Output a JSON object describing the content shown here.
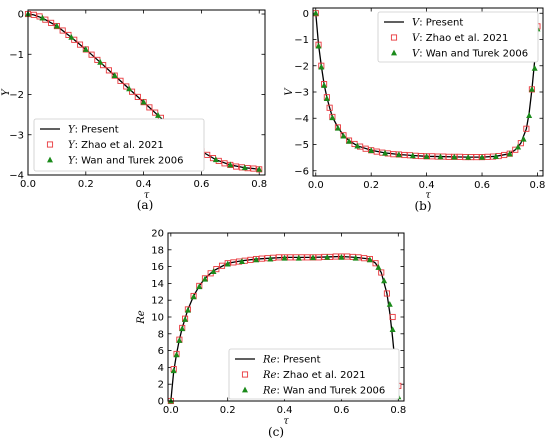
{
  "chart_data": [
    {
      "type": "line",
      "panel_label": "(a)",
      "xlabel": "τ",
      "ylabel": "Y",
      "xlim": [
        0,
        0.82
      ],
      "ylim": [
        -4,
        0.1
      ],
      "xticks": [
        0.0,
        0.2,
        0.4,
        0.6,
        0.8
      ],
      "xtick_labels": [
        "0.0",
        "0.2",
        "0.4",
        "0.6",
        "0.8"
      ],
      "yticks": [
        -4,
        -3,
        -2,
        -1,
        0
      ],
      "ytick_labels": [
        "−4",
        "−3",
        "−2",
        "−1",
        "0"
      ],
      "legend_position": "lower-left",
      "series": [
        {
          "name": "Y: Present",
          "symbol": "Y",
          "legend_suffix": ": Present",
          "style": "line",
          "color": "#000000",
          "x": [
            0.0,
            0.02,
            0.05,
            0.1,
            0.15,
            0.2,
            0.25,
            0.3,
            0.35,
            0.4,
            0.45,
            0.5,
            0.55,
            0.6,
            0.65,
            0.7,
            0.75,
            0.78,
            0.8
          ],
          "y": [
            0.0,
            -0.02,
            -0.1,
            -0.3,
            -0.58,
            -0.88,
            -1.2,
            -1.53,
            -1.86,
            -2.19,
            -2.52,
            -2.84,
            -3.14,
            -3.41,
            -3.62,
            -3.75,
            -3.82,
            -3.84,
            -3.86
          ]
        },
        {
          "name": "Y: Zhao et al. 2021",
          "symbol": "Y",
          "legend_suffix": ": Zhao et al. 2021",
          "style": "open-square",
          "color": "#e8383d",
          "x": [
            0.0,
            0.02,
            0.04,
            0.06,
            0.08,
            0.1,
            0.12,
            0.14,
            0.16,
            0.18,
            0.2,
            0.22,
            0.24,
            0.26,
            0.28,
            0.3,
            0.32,
            0.34,
            0.36,
            0.38,
            0.4,
            0.42,
            0.44,
            0.46,
            0.48,
            0.5,
            0.52,
            0.54,
            0.56,
            0.58,
            0.6,
            0.62,
            0.64,
            0.66,
            0.68,
            0.7,
            0.72,
            0.74,
            0.76,
            0.78,
            0.8
          ],
          "y": [
            0.0,
            -0.02,
            -0.06,
            -0.14,
            -0.22,
            -0.3,
            -0.41,
            -0.52,
            -0.64,
            -0.76,
            -0.88,
            -1.01,
            -1.14,
            -1.27,
            -1.4,
            -1.53,
            -1.66,
            -1.8,
            -1.93,
            -2.06,
            -2.19,
            -2.32,
            -2.45,
            -2.58,
            -2.71,
            -2.84,
            -2.96,
            -3.08,
            -3.2,
            -3.31,
            -3.41,
            -3.5,
            -3.58,
            -3.65,
            -3.71,
            -3.75,
            -3.79,
            -3.81,
            -3.83,
            -3.84,
            -3.86
          ]
        },
        {
          "name": "Y: Wan and Turek 2006",
          "symbol": "Y",
          "legend_suffix": ": Wan and Turek 2006",
          "style": "filled-triangle",
          "color": "#1a8a1a",
          "x": [
            0.0,
            0.05,
            0.1,
            0.15,
            0.2,
            0.25,
            0.3,
            0.35,
            0.4,
            0.45,
            0.5,
            0.55,
            0.6,
            0.65,
            0.7,
            0.75,
            0.8
          ],
          "y": [
            0.0,
            -0.1,
            -0.3,
            -0.58,
            -0.88,
            -1.2,
            -1.53,
            -1.86,
            -2.19,
            -2.52,
            -2.84,
            -3.14,
            -3.41,
            -3.62,
            -3.75,
            -3.82,
            -3.86
          ]
        }
      ]
    },
    {
      "type": "line",
      "panel_label": "(b)",
      "xlabel": "τ",
      "ylabel": "V",
      "xlim": [
        -0.01,
        0.82
      ],
      "ylim": [
        -6.2,
        0.2
      ],
      "xticks": [
        0.0,
        0.2,
        0.4,
        0.6,
        0.8
      ],
      "xtick_labels": [
        "0.0",
        "0.2",
        "0.4",
        "0.6",
        "0.8"
      ],
      "yticks": [
        -6,
        -5,
        -4,
        -3,
        -2,
        -1,
        0
      ],
      "ytick_labels": [
        "−6",
        "−5",
        "−4",
        "−3",
        "−2",
        "−1",
        "0"
      ],
      "legend_position": "top-right",
      "series": [
        {
          "name": "V: Present",
          "symbol": "V",
          "legend_suffix": ": Present",
          "style": "line",
          "color": "#000000",
          "x": [
            0.0,
            0.005,
            0.01,
            0.02,
            0.03,
            0.04,
            0.05,
            0.06,
            0.08,
            0.1,
            0.12,
            0.15,
            0.2,
            0.25,
            0.3,
            0.35,
            0.4,
            0.45,
            0.5,
            0.55,
            0.6,
            0.65,
            0.7,
            0.72,
            0.74,
            0.76,
            0.77,
            0.78,
            0.79,
            0.8
          ],
          "y": [
            0.0,
            -0.6,
            -1.2,
            -2.0,
            -2.7,
            -3.2,
            -3.6,
            -3.95,
            -4.35,
            -4.65,
            -4.85,
            -5.05,
            -5.22,
            -5.32,
            -5.38,
            -5.42,
            -5.45,
            -5.46,
            -5.47,
            -5.48,
            -5.48,
            -5.45,
            -5.35,
            -5.2,
            -4.95,
            -4.4,
            -3.8,
            -2.9,
            -1.8,
            -0.5
          ]
        },
        {
          "name": "V: Zhao et al. 2021",
          "symbol": "V",
          "legend_suffix": ": Zhao et al. 2021",
          "style": "open-square",
          "color": "#e8383d",
          "x": [
            0.0,
            0.01,
            0.02,
            0.03,
            0.04,
            0.05,
            0.06,
            0.08,
            0.1,
            0.12,
            0.14,
            0.16,
            0.18,
            0.2,
            0.22,
            0.24,
            0.26,
            0.28,
            0.3,
            0.32,
            0.34,
            0.36,
            0.38,
            0.4,
            0.42,
            0.44,
            0.46,
            0.48,
            0.5,
            0.52,
            0.54,
            0.56,
            0.58,
            0.6,
            0.62,
            0.64,
            0.66,
            0.68,
            0.7,
            0.72,
            0.74,
            0.76,
            0.78,
            0.8
          ],
          "y": [
            0.0,
            -1.2,
            -2.0,
            -2.7,
            -3.2,
            -3.6,
            -3.95,
            -4.35,
            -4.65,
            -4.85,
            -4.98,
            -5.08,
            -5.16,
            -5.22,
            -5.27,
            -5.31,
            -5.34,
            -5.37,
            -5.38,
            -5.4,
            -5.41,
            -5.43,
            -5.44,
            -5.45,
            -5.45,
            -5.46,
            -5.46,
            -5.47,
            -5.47,
            -5.47,
            -5.48,
            -5.48,
            -5.48,
            -5.48,
            -5.47,
            -5.46,
            -5.44,
            -5.4,
            -5.35,
            -5.2,
            -4.95,
            -4.4,
            -2.9,
            -0.5
          ]
        },
        {
          "name": "V: Wan and Turek 2006",
          "symbol": "V",
          "legend_suffix": ": Wan and Turek 2006",
          "style": "filled-triangle",
          "color": "#1a8a1a",
          "x": [
            0.0,
            0.01,
            0.02,
            0.03,
            0.04,
            0.06,
            0.08,
            0.1,
            0.12,
            0.15,
            0.2,
            0.25,
            0.3,
            0.35,
            0.4,
            0.45,
            0.5,
            0.55,
            0.6,
            0.65,
            0.7,
            0.73,
            0.75,
            0.77,
            0.78,
            0.79,
            0.8
          ],
          "y": [
            0.0,
            -1.25,
            -2.05,
            -2.75,
            -3.25,
            -3.98,
            -4.38,
            -4.68,
            -4.88,
            -5.06,
            -5.23,
            -5.33,
            -5.39,
            -5.43,
            -5.46,
            -5.47,
            -5.48,
            -5.49,
            -5.49,
            -5.46,
            -5.36,
            -5.1,
            -4.8,
            -3.9,
            -2.9,
            -2.1,
            -0.6
          ]
        }
      ]
    },
    {
      "type": "line",
      "panel_label": "(c)",
      "xlabel": "τ",
      "ylabel": "Re",
      "xlim": [
        -0.01,
        0.82
      ],
      "ylim": [
        0,
        20
      ],
      "xticks": [
        0.0,
        0.2,
        0.4,
        0.6,
        0.8
      ],
      "xtick_labels": [
        "0.0",
        "0.2",
        "0.4",
        "0.6",
        "0.8"
      ],
      "yticks": [
        0,
        2,
        4,
        6,
        8,
        10,
        12,
        14,
        16,
        18,
        20
      ],
      "ytick_labels": [
        "0",
        "2",
        "4",
        "6",
        "8",
        "10",
        "12",
        "14",
        "16",
        "18",
        "20"
      ],
      "legend_position": "lower-center",
      "series": [
        {
          "name": "Re: Present",
          "symbol": "Re",
          "legend_suffix": ": Present",
          "style": "line",
          "color": "#000000",
          "x": [
            0.0,
            0.005,
            0.01,
            0.02,
            0.03,
            0.04,
            0.05,
            0.06,
            0.08,
            0.1,
            0.12,
            0.15,
            0.2,
            0.25,
            0.3,
            0.35,
            0.4,
            0.45,
            0.5,
            0.55,
            0.6,
            0.65,
            0.7,
            0.72,
            0.74,
            0.76,
            0.77,
            0.78,
            0.79,
            0.8
          ],
          "y": [
            0.0,
            1.8,
            3.5,
            5.6,
            7.3,
            8.7,
            9.8,
            10.9,
            12.5,
            13.7,
            14.6,
            15.5,
            16.4,
            16.7,
            16.9,
            17.0,
            17.1,
            17.1,
            17.1,
            17.15,
            17.2,
            17.1,
            16.9,
            16.4,
            15.3,
            12.8,
            10.5,
            7.5,
            4.0,
            0.5
          ]
        },
        {
          "name": "Re: Zhao et al. 2021",
          "symbol": "Re",
          "legend_suffix": ": Zhao et al. 2021",
          "style": "open-square",
          "color": "#e8383d",
          "x": [
            0.0,
            0.01,
            0.02,
            0.03,
            0.04,
            0.05,
            0.06,
            0.08,
            0.1,
            0.12,
            0.14,
            0.16,
            0.18,
            0.2,
            0.22,
            0.24,
            0.26,
            0.28,
            0.3,
            0.32,
            0.34,
            0.36,
            0.38,
            0.4,
            0.42,
            0.44,
            0.46,
            0.48,
            0.5,
            0.52,
            0.54,
            0.56,
            0.58,
            0.6,
            0.62,
            0.64,
            0.66,
            0.68,
            0.7,
            0.72,
            0.74,
            0.76,
            0.78,
            0.8
          ],
          "y": [
            0.0,
            3.8,
            5.6,
            7.3,
            8.7,
            9.8,
            10.9,
            12.5,
            13.7,
            14.6,
            15.2,
            15.7,
            16.1,
            16.4,
            16.5,
            16.6,
            16.7,
            16.8,
            16.9,
            16.95,
            17.0,
            17.05,
            17.1,
            17.1,
            17.1,
            17.1,
            17.1,
            17.1,
            17.1,
            17.1,
            17.15,
            17.15,
            17.2,
            17.2,
            17.2,
            17.15,
            17.1,
            17.0,
            16.9,
            16.4,
            15.3,
            12.8,
            10.0,
            1.8
          ]
        },
        {
          "name": "Re: Wan and Turek 2006",
          "symbol": "Re",
          "legend_suffix": ": Wan and Turek 2006",
          "style": "filled-triangle",
          "color": "#1a8a1a",
          "x": [
            0.0,
            0.01,
            0.02,
            0.03,
            0.04,
            0.05,
            0.06,
            0.08,
            0.1,
            0.12,
            0.15,
            0.2,
            0.25,
            0.3,
            0.35,
            0.4,
            0.45,
            0.5,
            0.55,
            0.6,
            0.65,
            0.7,
            0.73,
            0.75,
            0.77,
            0.78,
            0.79,
            0.8
          ],
          "y": [
            0.0,
            3.6,
            5.5,
            7.2,
            8.6,
            9.7,
            10.8,
            12.4,
            13.6,
            14.5,
            15.4,
            16.3,
            16.6,
            16.8,
            16.9,
            17.0,
            17.0,
            17.05,
            17.1,
            17.1,
            17.0,
            16.8,
            15.9,
            14.3,
            11.5,
            8.5,
            5.0,
            0.5
          ]
        }
      ]
    }
  ]
}
